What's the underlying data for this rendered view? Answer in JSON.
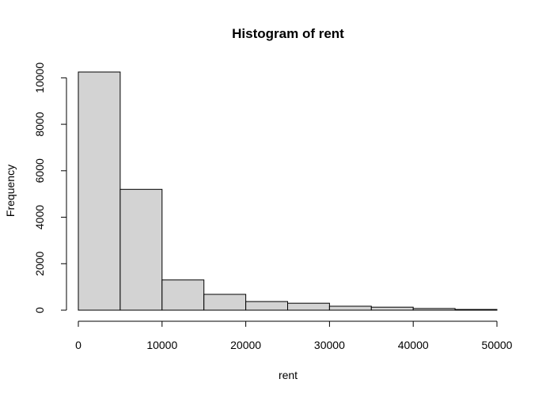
{
  "chart_data": {
    "type": "bar",
    "title": "Histogram of rent",
    "xlabel": "rent",
    "ylabel": "Frequency",
    "bins": [
      {
        "start": 0,
        "end": 5000,
        "count": 10250
      },
      {
        "start": 5000,
        "end": 10000,
        "count": 5200
      },
      {
        "start": 10000,
        "end": 15000,
        "count": 1300
      },
      {
        "start": 15000,
        "end": 20000,
        "count": 680
      },
      {
        "start": 20000,
        "end": 25000,
        "count": 370
      },
      {
        "start": 25000,
        "end": 30000,
        "count": 300
      },
      {
        "start": 30000,
        "end": 35000,
        "count": 170
      },
      {
        "start": 35000,
        "end": 40000,
        "count": 130
      },
      {
        "start": 40000,
        "end": 45000,
        "count": 70
      },
      {
        "start": 45000,
        "end": 50000,
        "count": 30
      }
    ],
    "xlim": [
      0,
      50000
    ],
    "ylim": [
      0,
      10250
    ],
    "x_ticks": [
      0,
      10000,
      20000,
      30000,
      40000,
      50000
    ],
    "y_ticks": [
      0,
      2000,
      4000,
      6000,
      8000,
      10000
    ],
    "bar_color": "#d3d3d3",
    "grid": false
  }
}
